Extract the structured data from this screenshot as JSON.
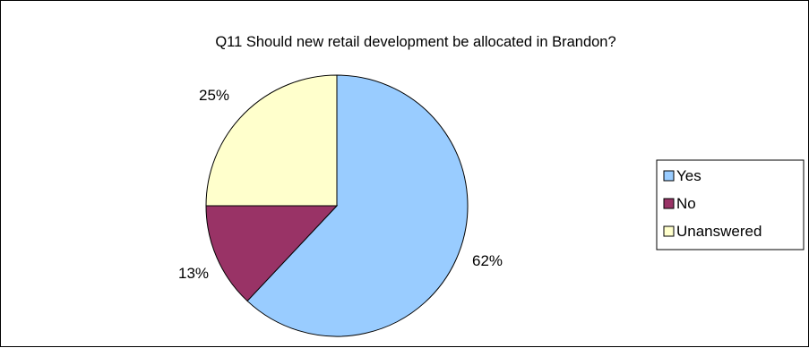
{
  "chart_data": {
    "type": "pie",
    "title": "Q11 Should new retail development be allocated in Brandon?",
    "categories": [
      "Yes",
      "No",
      "Unanswered"
    ],
    "values": [
      62,
      13,
      25
    ],
    "labels": [
      "62%",
      "13%",
      "25%"
    ],
    "colors": [
      "#99ccff",
      "#993366",
      "#ffffcc"
    ],
    "legend": "right",
    "start_angle": "12 o'clock",
    "direction": "clockwise"
  }
}
